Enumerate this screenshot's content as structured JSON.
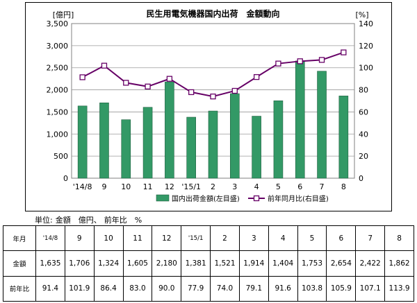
{
  "chart_data": {
    "type": "bar+line",
    "title": "民生用電気機器国内出荷　金額動向",
    "left_axis_unit": "[億円]",
    "right_axis_unit": "[%]",
    "categories": [
      "'14/8",
      "9",
      "10",
      "11",
      "12",
      "'15/1",
      "2",
      "3",
      "4",
      "5",
      "6",
      "7",
      "8"
    ],
    "series": [
      {
        "name": "国内出荷金額(左目盛)",
        "type": "bar",
        "axis": "left",
        "color": "#339966",
        "values": [
          1635,
          1706,
          1324,
          1605,
          2180,
          1381,
          1521,
          1914,
          1404,
          1753,
          2654,
          2422,
          1862
        ]
      },
      {
        "name": "前年同月比(右目盛)",
        "type": "line",
        "axis": "right",
        "color": "#660066",
        "values": [
          91.4,
          101.9,
          86.4,
          83.0,
          90.0,
          77.9,
          74.0,
          79.1,
          91.6,
          103.8,
          105.9,
          107.1,
          113.9
        ]
      }
    ],
    "left_axis": {
      "min": 0,
      "max": 3500,
      "step": 500,
      "tick_labels": [
        "0",
        "500",
        "1,000",
        "1,500",
        "2,000",
        "2,500",
        "3,000",
        "3,500"
      ]
    },
    "right_axis": {
      "min": 0,
      "max": 140,
      "step": 20,
      "tick_labels": [
        "0",
        "20",
        "40",
        "60",
        "80",
        "100",
        "120",
        "140"
      ]
    },
    "grid": true,
    "legend_position": "bottom"
  },
  "unit_note": {
    "prefix": "単位:",
    "amount": "金額　億円、",
    "ratio": "前年比　%"
  },
  "table": {
    "header_label": "年月",
    "months": [
      "'14/8",
      "9",
      "10",
      "11",
      "12",
      "'15/1",
      "2",
      "3",
      "4",
      "5",
      "6",
      "7",
      "8"
    ],
    "amount_label": "金額",
    "amounts": [
      "1,635",
      "1,706",
      "1,324",
      "1,605",
      "2,180",
      "1,381",
      "1,521",
      "1,914",
      "1,404",
      "1,753",
      "2,654",
      "2,422",
      "1,862"
    ],
    "ratio_label": "前年比",
    "ratios": [
      "91.4",
      "101.9",
      "86.4",
      "83.0",
      "90.0",
      "77.9",
      "74.0",
      "79.1",
      "91.6",
      "103.8",
      "105.9",
      "107.1",
      "113.9"
    ]
  }
}
